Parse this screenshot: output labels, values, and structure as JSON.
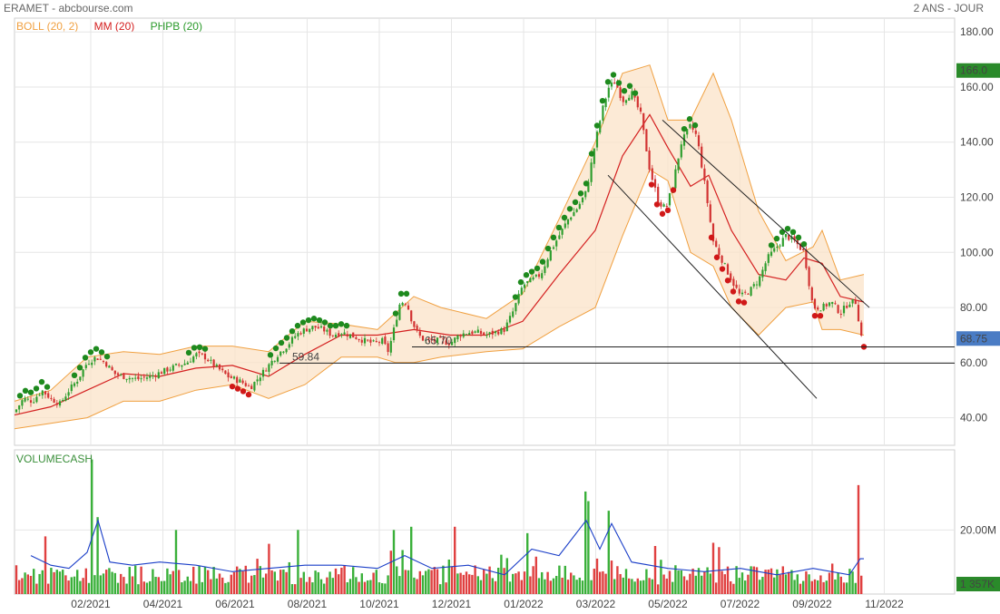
{
  "header": {
    "title": "ERAMET - abcbourse.com",
    "period": "2 ANS - JOUR"
  },
  "legend": [
    {
      "label": "BOLL (20, 2)",
      "color": "#f0a040"
    },
    {
      "label": "MM (20)",
      "color": "#d42020"
    },
    {
      "label": "PHPB (20)",
      "color": "#2a9a2a"
    }
  ],
  "chart_data": [
    {
      "type": "candlestick",
      "title": "ERAMET",
      "x_ticks": [
        "02/2021",
        "04/2021",
        "06/2021",
        "08/2021",
        "10/2021",
        "12/2021",
        "01/2022",
        "03/2022",
        "05/2022",
        "07/2022",
        "09/2022",
        "11/2022"
      ],
      "y_ticks": [
        "40.00",
        "60.00",
        "80.00",
        "100.00",
        "120.00",
        "140.00",
        "160.00",
        "180.00"
      ],
      "ylim": [
        30,
        185
      ],
      "price_path": [
        [
          0,
          42
        ],
        [
          10,
          47
        ],
        [
          20,
          46
        ],
        [
          30,
          50
        ],
        [
          40,
          47
        ],
        [
          50,
          45
        ],
        [
          60,
          50
        ],
        [
          70,
          54
        ],
        [
          80,
          60
        ],
        [
          90,
          62
        ],
        [
          100,
          60
        ],
        [
          110,
          56
        ],
        [
          120,
          55
        ],
        [
          135,
          54
        ],
        [
          150,
          55
        ],
        [
          165,
          57
        ],
        [
          180,
          59
        ],
        [
          190,
          60
        ],
        [
          200,
          63
        ],
        [
          210,
          62
        ],
        [
          220,
          59
        ],
        [
          235,
          55
        ],
        [
          250,
          53
        ],
        [
          260,
          51
        ],
        [
          270,
          55
        ],
        [
          280,
          59
        ],
        [
          290,
          63
        ],
        [
          300,
          66
        ],
        [
          310,
          70
        ],
        [
          320,
          72
        ],
        [
          330,
          73
        ],
        [
          340,
          72
        ],
        [
          350,
          70
        ],
        [
          360,
          71
        ],
        [
          370,
          70
        ],
        [
          385,
          68
        ],
        [
          395,
          67
        ],
        [
          405,
          68
        ],
        [
          412,
          64
        ],
        [
          418,
          72
        ],
        [
          425,
          82
        ],
        [
          432,
          82
        ],
        [
          438,
          75
        ],
        [
          445,
          70
        ],
        [
          452,
          68
        ],
        [
          460,
          68
        ],
        [
          470,
          68
        ],
        [
          480,
          67
        ],
        [
          490,
          70
        ],
        [
          500,
          71
        ],
        [
          510,
          71
        ],
        [
          520,
          70
        ],
        [
          530,
          71
        ],
        [
          540,
          72
        ],
        [
          550,
          79
        ],
        [
          560,
          88
        ],
        [
          570,
          90
        ],
        [
          580,
          92
        ],
        [
          590,
          100
        ],
        [
          600,
          106
        ],
        [
          610,
          112
        ],
        [
          620,
          116
        ],
        [
          630,
          122
        ],
        [
          640,
          140
        ],
        [
          648,
          152
        ],
        [
          655,
          160
        ],
        [
          662,
          162
        ],
        [
          670,
          155
        ],
        [
          680,
          158
        ],
        [
          690,
          150
        ],
        [
          700,
          130
        ],
        [
          710,
          118
        ],
        [
          718,
          116
        ],
        [
          725,
          124
        ],
        [
          735,
          140
        ],
        [
          745,
          146
        ],
        [
          752,
          142
        ],
        [
          760,
          126
        ],
        [
          770,
          104
        ],
        [
          780,
          97
        ],
        [
          790,
          90
        ],
        [
          800,
          84
        ],
        [
          810,
          86
        ],
        [
          820,
          90
        ],
        [
          830,
          98
        ],
        [
          840,
          102
        ],
        [
          850,
          106
        ],
        [
          860,
          104
        ],
        [
          870,
          100
        ],
        [
          875,
          90
        ],
        [
          880,
          80
        ],
        [
          890,
          80
        ],
        [
          900,
          82
        ],
        [
          910,
          78
        ],
        [
          920,
          82
        ],
        [
          928,
          82
        ],
        [
          932,
          70
        ],
        [
          936,
          68.75
        ]
      ],
      "mm20_path": [
        [
          0,
          41
        ],
        [
          40,
          44
        ],
        [
          80,
          50
        ],
        [
          120,
          56
        ],
        [
          160,
          55
        ],
        [
          200,
          58
        ],
        [
          240,
          59
        ],
        [
          280,
          55
        ],
        [
          320,
          63
        ],
        [
          360,
          70
        ],
        [
          400,
          70
        ],
        [
          440,
          72
        ],
        [
          480,
          70
        ],
        [
          520,
          70
        ],
        [
          560,
          75
        ],
        [
          600,
          92
        ],
        [
          640,
          108
        ],
        [
          670,
          135
        ],
        [
          700,
          150
        ],
        [
          720,
          138
        ],
        [
          745,
          124
        ],
        [
          765,
          128
        ],
        [
          790,
          108
        ],
        [
          820,
          92
        ],
        [
          850,
          90
        ],
        [
          870,
          98
        ],
        [
          890,
          96
        ],
        [
          910,
          84
        ],
        [
          936,
          82
        ]
      ],
      "boll_upper_path": [
        [
          0,
          46
        ],
        [
          40,
          50
        ],
        [
          80,
          62
        ],
        [
          120,
          64
        ],
        [
          160,
          63
        ],
        [
          200,
          66
        ],
        [
          240,
          66
        ],
        [
          280,
          64
        ],
        [
          320,
          75
        ],
        [
          360,
          74
        ],
        [
          400,
          72
        ],
        [
          420,
          78
        ],
        [
          440,
          84
        ],
        [
          470,
          80
        ],
        [
          520,
          76
        ],
        [
          560,
          85
        ],
        [
          600,
          112
        ],
        [
          640,
          140
        ],
        [
          670,
          165
        ],
        [
          700,
          168
        ],
        [
          720,
          148
        ],
        [
          745,
          148
        ],
        [
          770,
          165
        ],
        [
          790,
          148
        ],
        [
          820,
          115
        ],
        [
          850,
          97
        ],
        [
          880,
          102
        ],
        [
          890,
          108
        ],
        [
          910,
          90
        ],
        [
          936,
          92
        ]
      ],
      "boll_lower_path": [
        [
          0,
          36
        ],
        [
          40,
          38
        ],
        [
          80,
          40
        ],
        [
          120,
          46
        ],
        [
          160,
          46
        ],
        [
          200,
          50
        ],
        [
          240,
          52
        ],
        [
          280,
          47
        ],
        [
          320,
          52
        ],
        [
          360,
          62
        ],
        [
          400,
          62
        ],
        [
          420,
          60
        ],
        [
          440,
          60
        ],
        [
          470,
          62
        ],
        [
          520,
          64
        ],
        [
          560,
          65
        ],
        [
          600,
          73
        ],
        [
          640,
          80
        ],
        [
          670,
          106
        ],
        [
          700,
          130
        ],
        [
          720,
          126
        ],
        [
          745,
          100
        ],
        [
          770,
          95
        ],
        [
          790,
          80
        ],
        [
          820,
          70
        ],
        [
          850,
          80
        ],
        [
          880,
          82
        ],
        [
          890,
          72
        ],
        [
          910,
          72
        ],
        [
          936,
          70
        ]
      ],
      "channel_lines": [
        {
          "x1": 730,
          "y1": 148,
          "x2": 958,
          "y2": 80
        },
        {
          "x1": 670,
          "y1": 128,
          "x2": 900,
          "y2": 47
        }
      ],
      "support_lines": [
        {
          "value": 65.7,
          "label": "65.70",
          "label_x": 468
        },
        {
          "value": 59.84,
          "label": "59.84",
          "label_x": 322
        }
      ],
      "price_badges": [
        {
          "value": 166.0,
          "label": "166.0",
          "color": "#2a8a2a"
        },
        {
          "value": 68.75,
          "label": "68.75",
          "color": "#4a7cc4"
        }
      ]
    },
    {
      "type": "bar",
      "title": "VOLUMECASH",
      "y_ticks": [
        "20.00M"
      ],
      "ylim": [
        0,
        45
      ],
      "unit": "M",
      "last_value_label": "1 357K",
      "spikes": [
        {
          "x": 85,
          "value": 42,
          "color": "#3ab03a"
        },
        {
          "x": 92,
          "value": 24,
          "color": "#3ab03a"
        },
        {
          "x": 36,
          "value": 18,
          "color": "#e04040"
        },
        {
          "x": 178,
          "value": 20,
          "color": "#3ab03a"
        },
        {
          "x": 315,
          "value": 20,
          "color": "#3ab03a"
        },
        {
          "x": 420,
          "value": 20,
          "color": "#3ab03a"
        },
        {
          "x": 437,
          "value": 21,
          "color": "#3ab03a"
        },
        {
          "x": 487,
          "value": 21,
          "color": "#e04040"
        },
        {
          "x": 566,
          "value": 19,
          "color": "#3ab03a"
        },
        {
          "x": 629,
          "value": 32,
          "color": "#3ab03a"
        },
        {
          "x": 634,
          "value": 29,
          "color": "#3ab03a"
        },
        {
          "x": 656,
          "value": 26,
          "color": "#3ab03a"
        },
        {
          "x": 708,
          "value": 15,
          "color": "#e04040"
        },
        {
          "x": 770,
          "value": 16,
          "color": "#e04040"
        },
        {
          "x": 930,
          "value": 34,
          "color": "#e04040"
        }
      ],
      "ma_path": [
        [
          18,
          12
        ],
        [
          40,
          9
        ],
        [
          60,
          8
        ],
        [
          80,
          13
        ],
        [
          92,
          23
        ],
        [
          105,
          10
        ],
        [
          130,
          9
        ],
        [
          160,
          10
        ],
        [
          200,
          9
        ],
        [
          240,
          7
        ],
        [
          280,
          8
        ],
        [
          320,
          9
        ],
        [
          360,
          9
        ],
        [
          400,
          8
        ],
        [
          430,
          12
        ],
        [
          460,
          8
        ],
        [
          500,
          9
        ],
        [
          540,
          6
        ],
        [
          570,
          14
        ],
        [
          600,
          12
        ],
        [
          630,
          23
        ],
        [
          645,
          14
        ],
        [
          658,
          22
        ],
        [
          680,
          10
        ],
        [
          720,
          8
        ],
        [
          760,
          7
        ],
        [
          800,
          8
        ],
        [
          840,
          6
        ],
        [
          880,
          8
        ],
        [
          920,
          6
        ],
        [
          932,
          11
        ],
        [
          936,
          11
        ]
      ]
    }
  ]
}
